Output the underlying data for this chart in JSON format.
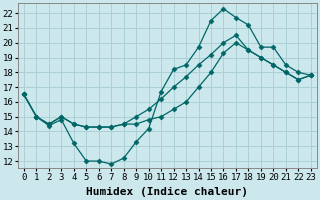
{
  "xlabel": "Humidex (Indice chaleur)",
  "bg_color": "#cce8ec",
  "grid_color": "#aad0d5",
  "line_color": "#006666",
  "xlim": [
    -0.5,
    23.5
  ],
  "ylim": [
    11.5,
    22.7
  ],
  "xticks": [
    0,
    1,
    2,
    3,
    4,
    5,
    6,
    7,
    8,
    9,
    10,
    11,
    12,
    13,
    14,
    15,
    16,
    17,
    18,
    19,
    20,
    21,
    22,
    23
  ],
  "yticks": [
    12,
    13,
    14,
    15,
    16,
    17,
    18,
    19,
    20,
    21,
    22
  ],
  "series1_x": [
    0,
    1,
    2,
    3,
    4,
    5,
    6,
    7,
    8,
    9,
    10,
    11,
    12,
    13,
    14,
    15,
    16,
    17,
    18,
    19,
    20,
    21,
    22,
    23
  ],
  "series1_y": [
    16.5,
    15.0,
    14.4,
    14.8,
    13.2,
    12.0,
    12.0,
    11.8,
    12.2,
    13.3,
    14.2,
    16.7,
    18.2,
    18.5,
    19.7,
    21.5,
    22.3,
    21.7,
    21.2,
    19.7,
    19.7,
    18.5,
    18.0,
    17.8
  ],
  "series2_x": [
    0,
    1,
    2,
    3,
    4,
    5,
    6,
    7,
    8,
    9,
    10,
    11,
    12,
    13,
    14,
    15,
    16,
    17,
    18,
    19,
    20,
    21,
    22,
    23
  ],
  "series2_y": [
    16.5,
    15.0,
    14.5,
    15.0,
    14.5,
    14.3,
    14.3,
    14.3,
    14.5,
    15.0,
    15.5,
    16.2,
    17.0,
    17.7,
    18.5,
    19.2,
    20.0,
    20.5,
    19.5,
    19.0,
    18.5,
    18.0,
    17.5,
    17.8
  ],
  "series3_x": [
    0,
    1,
    2,
    3,
    4,
    5,
    6,
    7,
    8,
    9,
    10,
    11,
    12,
    13,
    14,
    15,
    16,
    17,
    18,
    19,
    20,
    21,
    22,
    23
  ],
  "series3_y": [
    16.5,
    15.0,
    14.5,
    15.0,
    14.5,
    14.3,
    14.3,
    14.3,
    14.5,
    14.5,
    14.8,
    15.0,
    15.5,
    16.0,
    17.0,
    18.0,
    19.3,
    20.0,
    19.5,
    19.0,
    18.5,
    18.0,
    17.5,
    17.8
  ],
  "tickfontsize": 6.5,
  "labelfontsize": 8
}
